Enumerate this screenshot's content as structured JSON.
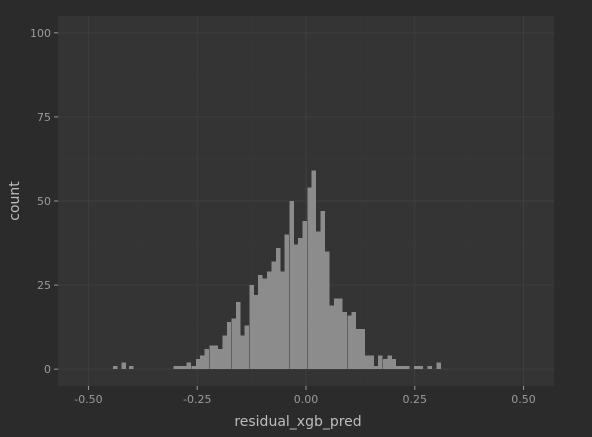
{
  "chart_data": {
    "type": "bar",
    "title": "",
    "xlabel": "residual_xgb_pred",
    "ylabel": "count",
    "xlim": [
      -0.57,
      0.57
    ],
    "ylim": [
      -5,
      105
    ],
    "x_ticks": [
      -0.5,
      -0.25,
      0,
      0.25,
      0.5
    ],
    "x_tick_labels": [
      "-0.50",
      "-0.25",
      "0.00",
      "0.25",
      "0.50"
    ],
    "y_ticks": [
      0,
      25,
      50,
      75,
      100
    ],
    "y_tick_labels": [
      "0",
      "25",
      "50",
      "75",
      "100"
    ],
    "grid": true,
    "bin_width": 0.0102,
    "bar_color": "#8c8c8c",
    "panel_color": "#343434",
    "grid_color": "#3f3f3f",
    "bins": [
      {
        "x": -0.438,
        "count": 1
      },
      {
        "x": -0.419,
        "count": 2
      },
      {
        "x": -0.402,
        "count": 1
      },
      {
        "x": -0.299,
        "count": 1
      },
      {
        "x": -0.289,
        "count": 1
      },
      {
        "x": -0.279,
        "count": 1
      },
      {
        "x": -0.269,
        "count": 2
      },
      {
        "x": -0.258,
        "count": 1
      },
      {
        "x": -0.248,
        "count": 3
      },
      {
        "x": -0.238,
        "count": 4
      },
      {
        "x": -0.228,
        "count": 6
      },
      {
        "x": -0.217,
        "count": 7
      },
      {
        "x": -0.207,
        "count": 7
      },
      {
        "x": -0.197,
        "count": 6
      },
      {
        "x": -0.187,
        "count": 10
      },
      {
        "x": -0.177,
        "count": 14
      },
      {
        "x": -0.166,
        "count": 15
      },
      {
        "x": -0.156,
        "count": 20
      },
      {
        "x": -0.146,
        "count": 10
      },
      {
        "x": -0.136,
        "count": 13
      },
      {
        "x": -0.125,
        "count": 25
      },
      {
        "x": -0.115,
        "count": 22
      },
      {
        "x": -0.105,
        "count": 28
      },
      {
        "x": -0.095,
        "count": 27
      },
      {
        "x": -0.084,
        "count": 29
      },
      {
        "x": -0.074,
        "count": 32
      },
      {
        "x": -0.064,
        "count": 36
      },
      {
        "x": -0.054,
        "count": 29
      },
      {
        "x": -0.044,
        "count": 40
      },
      {
        "x": -0.033,
        "count": 50
      },
      {
        "x": -0.023,
        "count": 37
      },
      {
        "x": -0.013,
        "count": 39
      },
      {
        "x": -0.003,
        "count": 44
      },
      {
        "x": 0.008,
        "count": 54
      },
      {
        "x": 0.018,
        "count": 59
      },
      {
        "x": 0.028,
        "count": 41
      },
      {
        "x": 0.038,
        "count": 47
      },
      {
        "x": 0.049,
        "count": 35
      },
      {
        "x": 0.059,
        "count": 19
      },
      {
        "x": 0.069,
        "count": 21
      },
      {
        "x": 0.079,
        "count": 21
      },
      {
        "x": 0.089,
        "count": 17
      },
      {
        "x": 0.1,
        "count": 16
      },
      {
        "x": 0.11,
        "count": 17
      },
      {
        "x": 0.12,
        "count": 12
      },
      {
        "x": 0.13,
        "count": 12
      },
      {
        "x": 0.141,
        "count": 4
      },
      {
        "x": 0.151,
        "count": 4
      },
      {
        "x": 0.161,
        "count": 1
      },
      {
        "x": 0.171,
        "count": 4
      },
      {
        "x": 0.182,
        "count": 3
      },
      {
        "x": 0.192,
        "count": 4
      },
      {
        "x": 0.202,
        "count": 3
      },
      {
        "x": 0.212,
        "count": 1
      },
      {
        "x": 0.222,
        "count": 1
      },
      {
        "x": 0.233,
        "count": 1
      },
      {
        "x": 0.253,
        "count": 1
      },
      {
        "x": 0.264,
        "count": 1
      },
      {
        "x": 0.284,
        "count": 1
      },
      {
        "x": 0.305,
        "count": 2
      }
    ]
  }
}
